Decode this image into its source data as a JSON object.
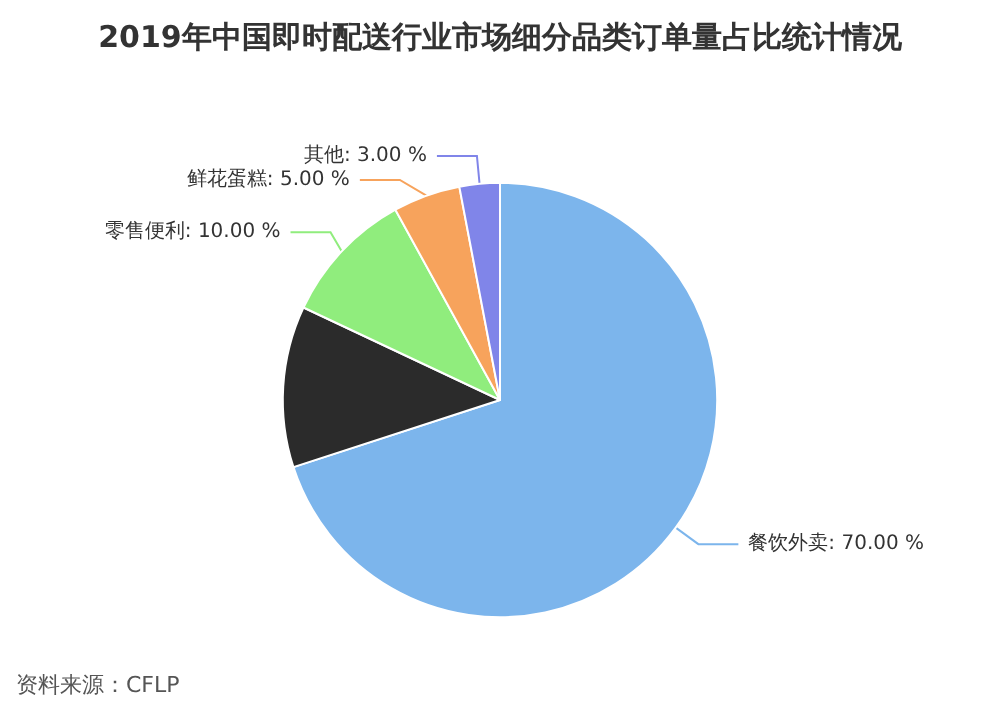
{
  "chart_data": {
    "type": "pie",
    "title": "2019年中国即时配送行业市场细分品类订单量占比统计情况",
    "categories": [
      "餐饮外卖",
      null,
      "零售便利",
      "鲜花蛋糕",
      "其他"
    ],
    "values": [
      70,
      12,
      10,
      5,
      3
    ],
    "value_labels": [
      "70.00 %",
      null,
      "10.00 %",
      "5.00 %",
      "3.00 %"
    ],
    "colors": [
      "#7cb5ec",
      "#2b2b2b",
      "#90ed7d",
      "#f7a35c",
      "#8085e9"
    ],
    "annotations": [
      "资料来源：CFLP"
    ]
  }
}
